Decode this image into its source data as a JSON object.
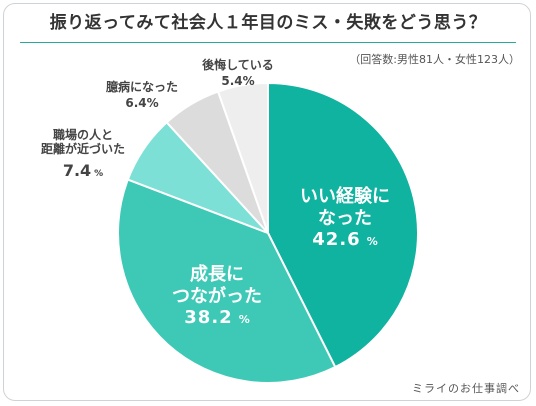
{
  "title": "振り返ってみて社会人１年目のミス・失敗をどう思う？",
  "note": "（回答数:男性81人・女性123人）",
  "credit": "ミライのお仕事調べ",
  "colors": [
    "#10b2a0",
    "#3dc9b5",
    "#7ce0d6",
    "#dcdcdc",
    "#eeeeee"
  ],
  "chart_data": {
    "type": "pie",
    "title": "振り返ってみて社会人１年目のミス・失敗をどう思う？",
    "unit": "%",
    "slices": [
      {
        "name": "いい経験になった",
        "lines": [
          "いい経験に",
          "なった"
        ],
        "value": 42.6,
        "value_label": "42.6",
        "color": "#10b2a0"
      },
      {
        "name": "成長につながった",
        "lines": [
          "成長に",
          "つながった"
        ],
        "value": 38.2,
        "value_label": "38.2",
        "color": "#3dc9b5"
      },
      {
        "name": "職場の人と距離が近づいた",
        "lines": [
          "職場の人と",
          "距離が近づいた"
        ],
        "value": 7.4,
        "value_label": "7.4",
        "color": "#7ce0d6"
      },
      {
        "name": "臆病になった",
        "lines": [
          "臆病になった"
        ],
        "value": 6.4,
        "value_label": "6.4%",
        "color": "#dcdcdc"
      },
      {
        "name": "後悔している",
        "lines": [
          "後悔している"
        ],
        "value": 5.4,
        "value_label": "5.4%",
        "color": "#eeeeee"
      }
    ]
  }
}
